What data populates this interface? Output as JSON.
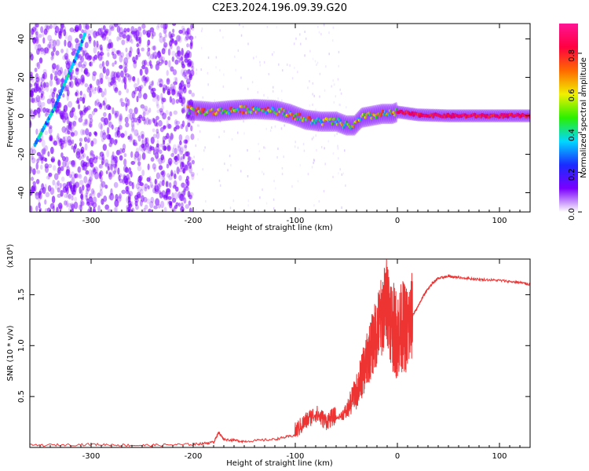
{
  "title": "C2E3.2024.196.09.39.G20",
  "colorbar": {
    "label": "Normalized spectral amplitude",
    "ticks": [
      "0.0",
      "0.2",
      "0.4",
      "0.6",
      "0.8"
    ],
    "tick_values": [
      0.0,
      0.2,
      0.4,
      0.6,
      0.8
    ],
    "range": [
      0.0,
      0.95
    ],
    "colors": [
      "#ffffff",
      "#7a00ff",
      "#1a2bff",
      "#00d8ff",
      "#2bf000",
      "#f0f000",
      "#ff6a00",
      "#ff0040",
      "#ff1493"
    ]
  },
  "chart_data": [
    {
      "type": "heatmap",
      "xlabel": "Height of straight line (km)",
      "ylabel": "Frequency (Hz)",
      "xlim": [
        -360,
        130
      ],
      "ylim": [
        -50,
        48
      ],
      "x_ticks": [
        -300,
        -200,
        -100,
        0,
        100
      ],
      "x_tick_labels": [
        "-300",
        "-200",
        "-100",
        "0",
        "100"
      ],
      "y_ticks": [
        -40,
        -20,
        0,
        20,
        40
      ],
      "y_tick_labels": [
        "-40",
        "-20",
        "0",
        "20",
        "40"
      ],
      "ridge": {
        "x": [
          -205,
          -180,
          -160,
          -140,
          -120,
          -105,
          -90,
          -75,
          -60,
          -50,
          -42,
          -35,
          -25,
          -15,
          -5,
          0,
          20,
          50,
          80,
          110,
          130
        ],
        "y": [
          3,
          2,
          3,
          3.5,
          3,
          1,
          -2,
          -3,
          -3,
          -5,
          -5,
          -1,
          0,
          1,
          1,
          2,
          0.5,
          0,
          0,
          0,
          0
        ]
      },
      "early_trace": {
        "x": [
          -355,
          -345,
          -335,
          -325,
          -315,
          -305
        ],
        "y": [
          -15,
          -5,
          5,
          18,
          30,
          44
        ]
      }
    },
    {
      "type": "line",
      "xlabel": "Height of straight line (km)",
      "ylabel": "SNR (10 * v/v)",
      "y_multiplier": "(x10⁴)",
      "xlim": [
        -360,
        130
      ],
      "ylim": [
        0,
        1.85
      ],
      "x_ticks": [
        -300,
        -200,
        -100,
        0,
        100
      ],
      "x_tick_labels": [
        "-300",
        "-200",
        "-100",
        "0",
        "100"
      ],
      "y_ticks": [
        0.5,
        1.0,
        1.5
      ],
      "y_tick_labels": [
        "0.5",
        "1.0",
        "1.5"
      ],
      "series": [
        {
          "color": "#ee3333",
          "x": [
            -360,
            -300,
            -250,
            -200,
            -180,
            -175,
            -170,
            -150,
            -120,
            -100,
            -90,
            -80,
            -70,
            -60,
            -50,
            -40,
            -35,
            -30,
            -25,
            -20,
            -15,
            -10,
            -5,
            0,
            5,
            10,
            15,
            20,
            25,
            30,
            35,
            40,
            50,
            60,
            80,
            100,
            120,
            130
          ],
          "y": [
            0.02,
            0.03,
            0.02,
            0.03,
            0.05,
            0.15,
            0.08,
            0.06,
            0.08,
            0.12,
            0.22,
            0.3,
            0.22,
            0.28,
            0.35,
            0.55,
            0.7,
            0.85,
            1.0,
            1.15,
            1.3,
            1.45,
            1.2,
            1.1,
            1.2,
            1.15,
            1.3,
            1.38,
            1.48,
            1.56,
            1.62,
            1.66,
            1.68,
            1.67,
            1.65,
            1.64,
            1.62,
            1.6
          ]
        }
      ]
    }
  ]
}
